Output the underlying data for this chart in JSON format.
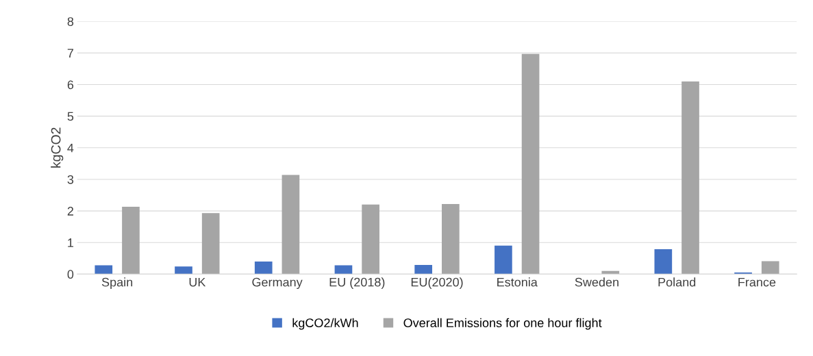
{
  "chart_data": {
    "type": "bar",
    "ylabel": "kgCO2",
    "categories": [
      "Spain",
      "UK",
      "Germany",
      "EU (2018)",
      "EU(2020)",
      "Estonia",
      "Sweden",
      "Poland",
      "France"
    ],
    "series": [
      {
        "name": "kgCO2/kWh",
        "color": "#4472c4",
        "values": [
          0.28,
          0.24,
          0.4,
          0.28,
          0.29,
          0.9,
          null,
          0.79,
          0.05
        ]
      },
      {
        "name": "Overall Emissions for one hour flight",
        "color": "#a5a5a5",
        "values": [
          2.13,
          1.93,
          3.14,
          2.2,
          2.22,
          6.97,
          0.1,
          6.1,
          0.41
        ]
      }
    ],
    "ylim": [
      0,
      8
    ],
    "yticks": [
      0,
      1,
      2,
      3,
      4,
      5,
      6,
      7,
      8
    ],
    "grid": "y",
    "legend": "bottom"
  }
}
